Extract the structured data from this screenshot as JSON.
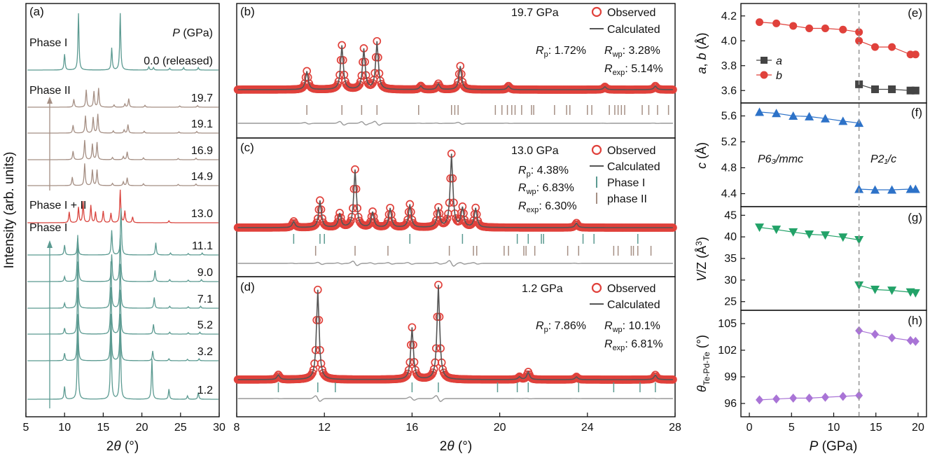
{
  "chart_data": [
    {
      "panel": "(a)",
      "type": "line",
      "xlabel": "2θ (°)",
      "ylabel": "Intensity (arb. units)",
      "xlim": [
        5,
        30
      ],
      "xticks": [
        "5",
        "10",
        "15",
        "20",
        "25",
        "30"
      ],
      "header": "P (GPa)",
      "phase_labels": [
        "Phase I",
        "Phase II",
        "Phase I + II",
        "Phase I"
      ],
      "series": [
        {
          "name": "0.0 (released)",
          "phase": "I",
          "color": "#5b9a91",
          "peaks": [
            [
              10.0,
              0.25
            ],
            [
              11.8,
              0.9
            ],
            [
              16.1,
              0.35
            ],
            [
              17.2,
              0.9
            ],
            [
              20.9,
              0.05
            ],
            [
              21.5,
              0.04
            ],
            [
              23.6,
              0.03
            ],
            [
              25.4,
              0.04
            ],
            [
              27.3,
              0.04
            ]
          ]
        },
        {
          "name": "19.7",
          "phase": "II",
          "color": "#a58f84",
          "peaks": [
            [
              11.2,
              0.25
            ],
            [
              12.8,
              0.55
            ],
            [
              13.8,
              0.5
            ],
            [
              14.4,
              0.6
            ],
            [
              16.4,
              0.07
            ],
            [
              17.8,
              0.1
            ],
            [
              18.3,
              0.27
            ],
            [
              20.4,
              0.06
            ],
            [
              24.9,
              0.04
            ],
            [
              27.2,
              0.05
            ]
          ]
        },
        {
          "name": "19.1",
          "phase": "II",
          "color": "#a58f84",
          "peaks": [
            [
              11.1,
              0.25
            ],
            [
              12.7,
              0.55
            ],
            [
              13.7,
              0.5
            ],
            [
              14.3,
              0.6
            ],
            [
              16.3,
              0.07
            ],
            [
              17.7,
              0.1
            ],
            [
              18.2,
              0.27
            ],
            [
              20.3,
              0.06
            ],
            [
              24.8,
              0.04
            ],
            [
              27.1,
              0.05
            ]
          ]
        },
        {
          "name": "16.9",
          "phase": "II",
          "color": "#a58f84",
          "peaks": [
            [
              11.1,
              0.27
            ],
            [
              12.6,
              0.62
            ],
            [
              13.6,
              0.5
            ],
            [
              14.2,
              0.55
            ],
            [
              16.2,
              0.07
            ],
            [
              17.6,
              0.1
            ],
            [
              18.1,
              0.25
            ],
            [
              20.2,
              0.06
            ],
            [
              24.7,
              0.04
            ],
            [
              27.0,
              0.05
            ]
          ]
        },
        {
          "name": "14.9",
          "phase": "II",
          "color": "#a58f84",
          "peaks": [
            [
              11.0,
              0.27
            ],
            [
              12.6,
              0.7
            ],
            [
              13.6,
              0.5
            ],
            [
              14.2,
              0.5
            ],
            [
              16.2,
              0.07
            ],
            [
              17.6,
              0.12
            ],
            [
              18.1,
              0.25
            ],
            [
              20.2,
              0.06
            ],
            [
              24.7,
              0.04
            ],
            [
              27.0,
              0.05
            ]
          ]
        },
        {
          "name": "13.0",
          "phase": "I+II",
          "color": "#d9453f",
          "peaks": [
            [
              10.6,
              0.28
            ],
            [
              11.8,
              0.4
            ],
            [
              12.4,
              0.55
            ],
            [
              13.4,
              0.45
            ],
            [
              14.0,
              0.28
            ],
            [
              15.0,
              0.3
            ],
            [
              16.0,
              0.25
            ],
            [
              17.2,
              0.85
            ],
            [
              17.8,
              0.3
            ],
            [
              18.8,
              0.15
            ],
            [
              23.5,
              0.05
            ]
          ]
        },
        {
          "name": "11.1",
          "phase": "I",
          "color": "#5b9a91",
          "peaks": [
            [
              10.0,
              0.2
            ],
            [
              11.7,
              0.35
            ],
            [
              16.1,
              0.5
            ],
            [
              17.3,
              0.95
            ],
            [
              21.8,
              0.25
            ],
            [
              23.7,
              0.04
            ],
            [
              26.0,
              0.03
            ],
            [
              27.8,
              0.04
            ]
          ]
        },
        {
          "name": "9.0",
          "phase": "I",
          "color": "#5b9a91",
          "peaks": [
            [
              10.0,
              0.1
            ],
            [
              11.7,
              0.95
            ],
            [
              16.1,
              0.55
            ],
            [
              17.2,
              0.95
            ],
            [
              21.7,
              0.23
            ],
            [
              23.6,
              0.04
            ],
            [
              26.0,
              0.03
            ],
            [
              27.7,
              0.04
            ]
          ]
        },
        {
          "name": "7.1",
          "phase": "I",
          "color": "#5b9a91",
          "peaks": [
            [
              10.0,
              0.1
            ],
            [
              11.7,
              0.95
            ],
            [
              16.0,
              0.95
            ],
            [
              17.2,
              0.9
            ],
            [
              21.6,
              0.22
            ],
            [
              23.6,
              0.04
            ],
            [
              26.0,
              0.03
            ],
            [
              27.6,
              0.04
            ]
          ]
        },
        {
          "name": "5.2",
          "phase": "I",
          "color": "#5b9a91",
          "peaks": [
            [
              10.0,
              0.12
            ],
            [
              11.7,
              0.95
            ],
            [
              16.0,
              0.95
            ],
            [
              17.2,
              0.9
            ],
            [
              21.5,
              0.2
            ],
            [
              23.6,
              0.04
            ],
            [
              26.0,
              0.03
            ],
            [
              27.5,
              0.04
            ]
          ]
        },
        {
          "name": "3.2",
          "phase": "I",
          "color": "#5b9a91",
          "peaks": [
            [
              10.0,
              0.15
            ],
            [
              11.7,
              0.95
            ],
            [
              16.0,
              0.95
            ],
            [
              17.2,
              0.95
            ],
            [
              21.4,
              0.2
            ],
            [
              23.5,
              0.04
            ],
            [
              25.9,
              0.03
            ],
            [
              27.4,
              0.04
            ]
          ]
        },
        {
          "name": "1.2",
          "phase": "I",
          "color": "#5b9a91",
          "peaks": [
            [
              10.0,
              0.15
            ],
            [
              11.7,
              0.9
            ],
            [
              16.0,
              0.95
            ],
            [
              17.2,
              0.95
            ],
            [
              21.3,
              0.48
            ],
            [
              23.5,
              0.12
            ],
            [
              25.9,
              0.04
            ],
            [
              27.3,
              0.08
            ]
          ]
        }
      ]
    },
    {
      "panel": "(b)",
      "type": "line",
      "pressure": "19.7 GPa",
      "legend": [
        "Observed",
        "Calculated"
      ],
      "stats": {
        "Rp": "1.72%",
        "Rwp": "3.28%",
        "Rexp": "5.14%"
      },
      "xlim": [
        8,
        28
      ],
      "peaks": [
        [
          11.2,
          0.25
        ],
        [
          12.8,
          0.6
        ],
        [
          13.8,
          0.55
        ],
        [
          14.4,
          0.65
        ],
        [
          16.4,
          0.05
        ],
        [
          17.2,
          0.08
        ],
        [
          18.2,
          0.32
        ],
        [
          20.4,
          0.05
        ],
        [
          24.8,
          0.04
        ],
        [
          27.1,
          0.05
        ]
      ],
      "ticks_phase_II": [
        11.2,
        12.8,
        13.7,
        14.4,
        16.3,
        17.8,
        17.95,
        18.1,
        19.8,
        20.1,
        20.35,
        20.55,
        20.7,
        21.0,
        21.45,
        21.55,
        22.5,
        23.05,
        23.2,
        24.0,
        24.2,
        25.0,
        25.25,
        25.4,
        25.55,
        25.7,
        26.5,
        26.8,
        27.2,
        27.7
      ]
    },
    {
      "panel": "(c)",
      "type": "line",
      "pressure": "13.0 GPa",
      "legend": [
        "Observed",
        "Calculated",
        "Phase I",
        "phase II"
      ],
      "stats": {
        "Rp": "4.38%",
        "Rwp": "6.83%",
        "Rexp": "6.30%"
      },
      "xlim": [
        8,
        28
      ],
      "peaks": [
        [
          10.6,
          0.08
        ],
        [
          11.8,
          0.35
        ],
        [
          12.7,
          0.18
        ],
        [
          13.4,
          0.75
        ],
        [
          14.2,
          0.2
        ],
        [
          15.0,
          0.25
        ],
        [
          15.9,
          0.3
        ],
        [
          17.2,
          0.25
        ],
        [
          17.8,
          0.95
        ],
        [
          18.3,
          0.25
        ],
        [
          18.9,
          0.25
        ],
        [
          23.5,
          0.06
        ]
      ],
      "ticks_phase_I": [
        10.6,
        11.8,
        12.0,
        15.9,
        18.3,
        20.8,
        21.3,
        21.9,
        22.0,
        23.8,
        24.3,
        26.3
      ],
      "ticks_phase_II": [
        11.6,
        13.4,
        14.9,
        17.7,
        18.8,
        18.95,
        20.2,
        20.4,
        21.1,
        21.2,
        21.6,
        23.1,
        23.6,
        25.2,
        25.4,
        26.0,
        26.1,
        26.3,
        26.9
      ]
    },
    {
      "panel": "(d)",
      "type": "line",
      "pressure": "1.2 GPa",
      "legend": [
        "Observed",
        "Calculated"
      ],
      "stats": {
        "Rp": "7.86%",
        "Rwp": "10.1%",
        "Rexp": "6.81%"
      },
      "xlabel": "2θ (°)",
      "xlim": [
        8,
        28
      ],
      "xticks": [
        "8",
        "12",
        "16",
        "20",
        "24",
        "28"
      ],
      "peaks": [
        [
          9.9,
          0.05
        ],
        [
          11.7,
          0.95
        ],
        [
          16.0,
          0.55
        ],
        [
          17.2,
          1.0
        ],
        [
          20.9,
          0.03
        ],
        [
          21.3,
          0.08
        ],
        [
          23.5,
          0.03
        ],
        [
          27.1,
          0.05
        ]
      ],
      "ticks_phase_I": [
        9.9,
        11.7,
        12.5,
        16.0,
        17.2,
        19.9,
        20.8,
        21.3,
        23.6,
        25.2,
        26.4,
        27.1
      ]
    },
    {
      "panel": "(e)",
      "type": "line",
      "ylabel": "a, b (Å)",
      "ylim": [
        3.5,
        4.3
      ],
      "yticks": [
        "3.6",
        "3.8",
        "4.0",
        "4.2"
      ],
      "x": [
        1.2,
        3.2,
        5.2,
        7.1,
        9.0,
        11.1,
        13.0,
        14.9,
        16.9,
        19.1,
        19.7
      ],
      "series": [
        {
          "name": "a",
          "color": "#444444",
          "marker": "square",
          "values": [
            null,
            null,
            null,
            null,
            null,
            null,
            3.65,
            3.61,
            3.61,
            3.6,
            3.6
          ]
        },
        {
          "name": "b",
          "color": "#e0413b",
          "marker": "circle",
          "values": [
            4.15,
            4.14,
            4.12,
            4.1,
            4.1,
            4.09,
            4.07,
            3.95,
            3.95,
            3.89,
            3.89
          ],
          "extra": [
            [
              13.0,
              4.0
            ]
          ]
        }
      ]
    },
    {
      "panel": "(f)",
      "type": "line",
      "ylabel": "c (Å)",
      "ylim": [
        4.2,
        5.8
      ],
      "yticks": [
        "4.4",
        "4.8",
        "5.2",
        "5.6"
      ],
      "phase_left": "P6₃/mmc",
      "phase_right": "P2₁/c",
      "x": [
        1.2,
        3.2,
        5.2,
        7.1,
        9.0,
        11.1,
        13.0,
        14.9,
        16.9,
        19.1,
        19.7
      ],
      "series": [
        {
          "name": "c",
          "color": "#2d72c8",
          "marker": "triangle-up",
          "values": [
            5.66,
            5.64,
            5.6,
            5.59,
            5.56,
            5.52,
            5.49,
            4.46,
            4.46,
            4.47,
            4.47
          ],
          "extra": [
            [
              13.0,
              4.47
            ]
          ]
        }
      ]
    },
    {
      "panel": "(g)",
      "type": "line",
      "ylabel": "V/Z (Å³)",
      "ylim": [
        23,
        47
      ],
      "yticks": [
        "25",
        "30",
        "35",
        "40",
        "45"
      ],
      "x": [
        1.2,
        3.2,
        5.2,
        7.1,
        9.0,
        11.1,
        13.0,
        14.9,
        16.9,
        19.1,
        19.7
      ],
      "series": [
        {
          "name": "V/Z",
          "color": "#22a268",
          "marker": "triangle-down",
          "values": [
            42.2,
            41.7,
            41.1,
            40.6,
            40.4,
            39.9,
            39.3,
            27.8,
            27.6,
            27.2,
            27.0
          ],
          "extra": [
            [
              13.0,
              28.8
            ]
          ]
        }
      ]
    },
    {
      "panel": "(h)",
      "type": "line",
      "ylabel": "θ Te-Pd-Te (°)",
      "ylim": [
        94.5,
        106.5
      ],
      "yticks": [
        "96",
        "99",
        "102",
        "105"
      ],
      "xlabel": "P (GPa)",
      "xlim": [
        -1,
        21
      ],
      "xticks": [
        "0",
        "5",
        "10",
        "15",
        "20"
      ],
      "x": [
        1.2,
        3.2,
        5.2,
        7.1,
        9.0,
        11.1,
        13.0,
        14.9,
        16.9,
        19.1,
        19.7
      ],
      "series": [
        {
          "name": "θ",
          "color": "#a974d6",
          "marker": "diamond",
          "values": [
            96.4,
            96.5,
            96.6,
            96.6,
            96.7,
            96.8,
            96.9,
            103.8,
            103.4,
            103.1,
            103.0
          ],
          "extra": [
            [
              13.0,
              104.2
            ]
          ]
        }
      ]
    }
  ],
  "labels": {
    "a": "(a)",
    "b": "(b)",
    "c": "(c)",
    "d": "(d)",
    "e": "(e)",
    "f": "(f)",
    "g": "(g)",
    "h": "(h)"
  }
}
